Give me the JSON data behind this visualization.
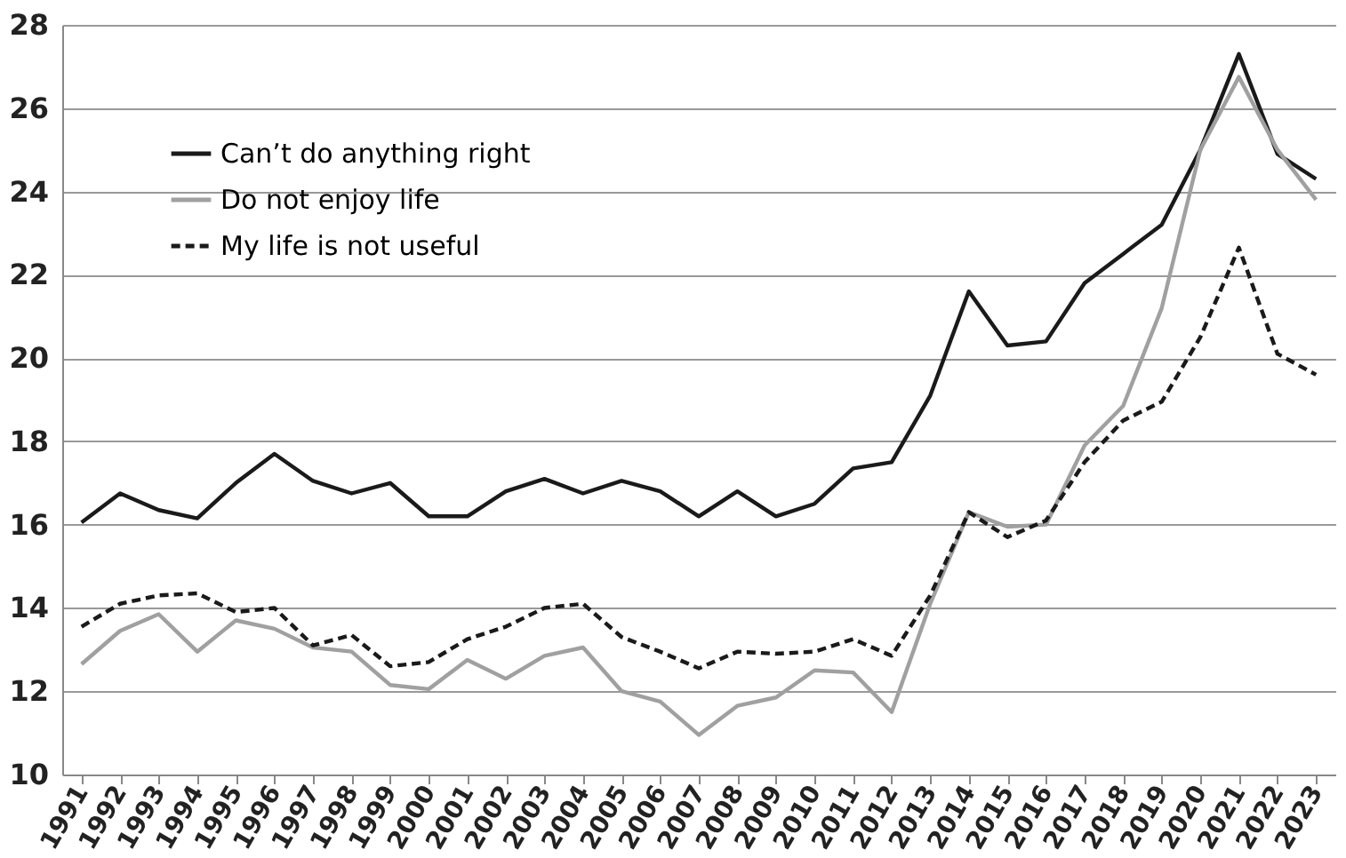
{
  "chart_data": {
    "type": "line",
    "categories": [
      "1991",
      "1992",
      "1993",
      "1994",
      "1995",
      "1996",
      "1997",
      "1998",
      "1999",
      "2000",
      "2001",
      "2002",
      "2003",
      "2004",
      "2005",
      "2006",
      "2007",
      "2008",
      "2009",
      "2010",
      "2011",
      "2012",
      "2013",
      "2014",
      "2015",
      "2016",
      "2017",
      "2018",
      "2019",
      "2020",
      "2021",
      "2022",
      "2023"
    ],
    "series": [
      {
        "name": "Can’t do anything right",
        "color": "#1a1a1a",
        "line_style": "solid",
        "values": [
          16.05,
          16.75,
          16.35,
          16.15,
          17.0,
          17.7,
          17.05,
          16.75,
          17.0,
          16.2,
          16.2,
          16.8,
          17.1,
          16.75,
          17.05,
          16.8,
          16.2,
          16.8,
          16.2,
          16.5,
          17.35,
          17.5,
          19.1,
          21.6,
          20.3,
          20.4,
          21.8,
          22.5,
          23.2,
          25.0,
          27.3,
          24.9,
          24.3
        ]
      },
      {
        "name": "Do not enjoy life",
        "color": "#a0a0a0",
        "line_style": "solid",
        "values": [
          12.65,
          13.45,
          13.85,
          12.95,
          13.7,
          13.5,
          13.05,
          12.95,
          12.15,
          12.05,
          12.75,
          12.3,
          12.85,
          13.05,
          12.0,
          11.75,
          10.95,
          11.65,
          11.85,
          12.5,
          12.45,
          11.5,
          14.1,
          16.3,
          15.95,
          16.0,
          17.9,
          18.85,
          21.2,
          25.0,
          26.75,
          25.0,
          23.8
        ]
      },
      {
        "name": "My life is not useful",
        "color": "#1a1a1a",
        "line_style": "dashed",
        "values": [
          13.55,
          14.1,
          14.3,
          14.35,
          13.9,
          14.0,
          13.1,
          13.35,
          12.6,
          12.7,
          13.25,
          13.55,
          14.0,
          14.1,
          13.3,
          12.95,
          12.55,
          12.95,
          12.9,
          12.95,
          13.25,
          12.85,
          14.3,
          16.3,
          15.7,
          16.1,
          17.5,
          18.5,
          18.95,
          20.5,
          22.65,
          20.1,
          19.6
        ]
      }
    ],
    "ylim": [
      10,
      28
    ],
    "yticks": [
      10,
      12,
      14,
      16,
      18,
      20,
      22,
      24,
      26,
      28
    ],
    "grid": "y",
    "legend": "top left",
    "marker": "none"
  }
}
